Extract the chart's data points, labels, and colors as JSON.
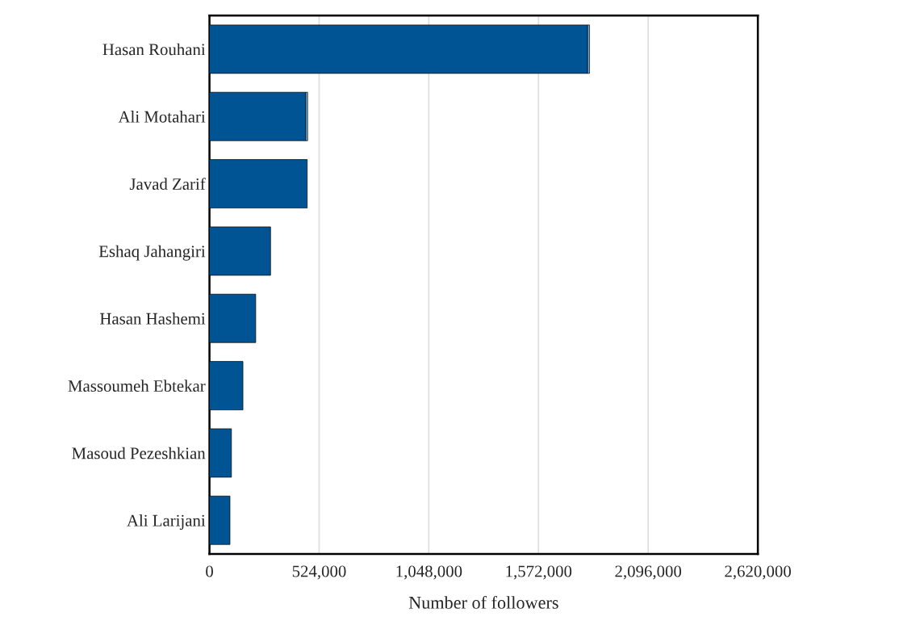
{
  "chart_data": {
    "type": "bar",
    "orientation": "horizontal",
    "stacked": true,
    "xlabel": "Number of followers",
    "categories": [
      "Hasan Rouhani",
      "Ali Motahari",
      "Javad Zarif",
      "Eshaq Jahangiri",
      "Hasan Hashemi",
      "Massoumeh Ebtekar",
      "Masoud Pezeshkian",
      "Ali Larijani"
    ],
    "series": [
      {
        "color": "#005494",
        "values": [
          1807000,
          460000,
          467000,
          292000,
          221000,
          160000,
          105000,
          98000
        ]
      },
      {
        "color": "#6baed6",
        "values": [
          9000,
          9000,
          null,
          null,
          null,
          null,
          null,
          null
        ]
      }
    ],
    "xlim": [
      0,
      2620000
    ],
    "xticks": [
      {
        "value": 0,
        "label": "0"
      },
      {
        "value": 524000,
        "label": "524,000"
      },
      {
        "value": 1048000,
        "label": "1,048,000"
      },
      {
        "value": 1572000,
        "label": "1,572,000"
      },
      {
        "value": 2096000,
        "label": "2,096,000"
      },
      {
        "value": 2620000,
        "label": "2,620,000"
      }
    ],
    "grid": "x"
  }
}
